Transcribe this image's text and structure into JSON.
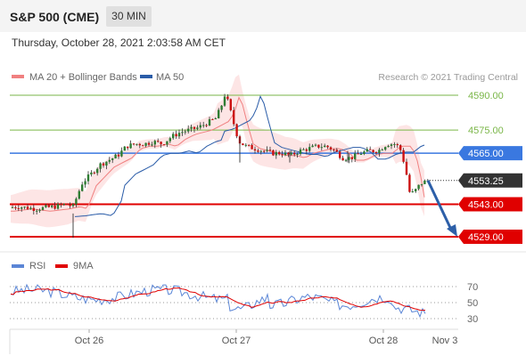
{
  "header": {
    "title": "S&P 500 (CME)",
    "timeframe": "30 MIN",
    "datetime": "Thursday, October 28, 2021 2:03:58 AM CET"
  },
  "chart_data": [
    {
      "type": "candlestick",
      "legend": [
        {
          "label": "MA 20 + Bollinger Bands",
          "color": "#f08080"
        },
        {
          "label": "MA 50",
          "color": "#2a5ca8"
        }
      ],
      "watermark": "Research © 2021 Trading Central",
      "ylim": [
        4525,
        4595
      ],
      "levels": [
        {
          "value": 4590,
          "label": "4590.00",
          "kind": "target",
          "color": "#7ab648"
        },
        {
          "value": 4575,
          "label": "4575.00",
          "kind": "target",
          "color": "#7ab648"
        },
        {
          "value": 4565,
          "label": "4565.00",
          "kind": "pivot",
          "color": "#3a78e0"
        },
        {
          "value": 4553.25,
          "label": "4553.25",
          "kind": "last",
          "color": "#333333"
        },
        {
          "value": 4543,
          "label": "4543.00",
          "kind": "support",
          "color": "#e00000"
        },
        {
          "value": 4529,
          "label": "4529.00",
          "kind": "support",
          "color": "#e00000"
        }
      ],
      "x_labels": [
        "Oct 26",
        "Oct 27",
        "Oct 28",
        "Nov 3"
      ],
      "forecast_arrow": {
        "from": 4553.25,
        "to": 4529
      }
    },
    {
      "type": "line",
      "legend": [
        {
          "label": "RSI",
          "color": "#5b86d6"
        },
        {
          "label": "9MA",
          "color": "#e00000"
        }
      ],
      "ylim": [
        20,
        80
      ],
      "ticks": [
        "70",
        "50",
        "30"
      ]
    }
  ]
}
